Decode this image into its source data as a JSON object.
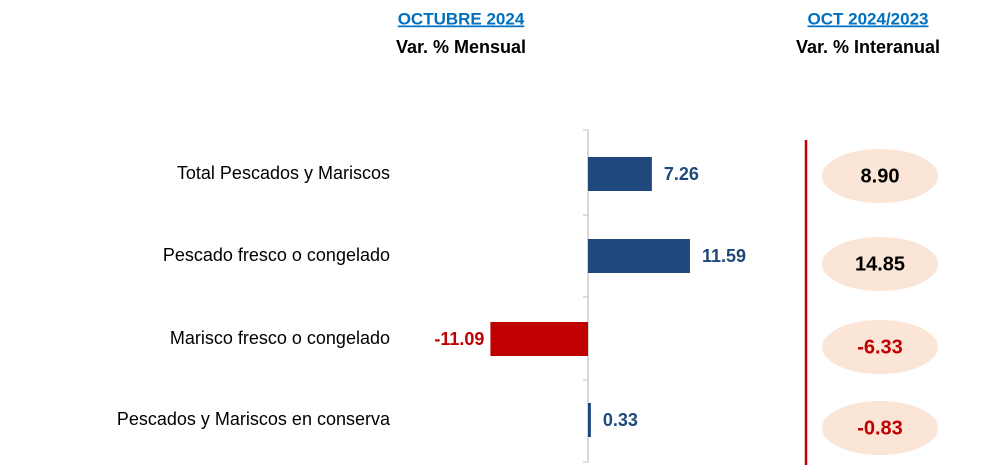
{
  "chart_data": [
    {
      "type": "bar",
      "orientation": "horizontal",
      "title": "OCTUBRE 2024",
      "subtitle": "Var. % Mensual",
      "categories": [
        "Total Pescados y Mariscos",
        "Pescado fresco o congelado",
        "Marisco fresco o congelado",
        "Pescados y Mariscos en conserva"
      ],
      "values": [
        7.26,
        11.59,
        -11.09,
        0.33
      ],
      "color": "#1f497d",
      "negative_color": "#c00000"
    },
    {
      "type": "badge",
      "title": "OCT 2024/2023",
      "subtitle": "Var. % Interanual",
      "values": [
        8.9,
        14.85,
        -6.33,
        -0.83
      ],
      "value_labels": [
        "8.90",
        "14.85",
        "-6.33",
        "-0.83"
      ],
      "color": "#fbe5d6",
      "text_color": "#000000",
      "negative_color": "#c00000"
    }
  ]
}
